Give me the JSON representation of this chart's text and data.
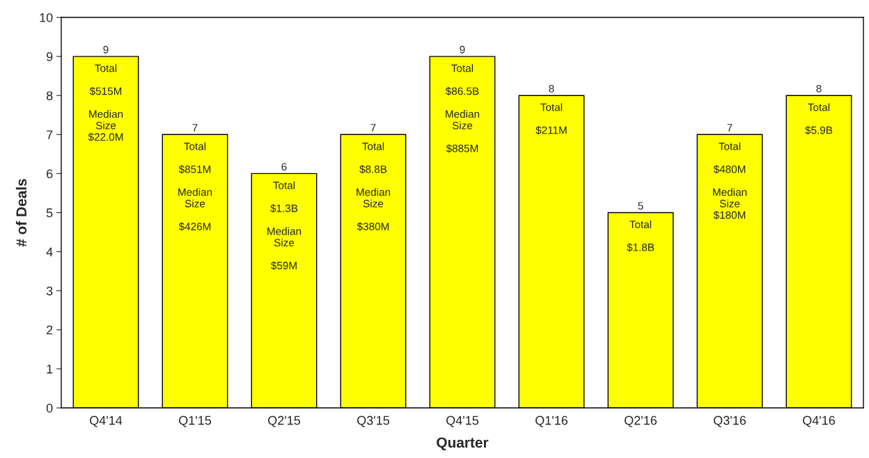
{
  "chart_data": {
    "type": "bar",
    "xlabel": "Quarter",
    "ylabel": "# of Deals",
    "categories": [
      "Q4'14",
      "Q1'15",
      "Q2'15",
      "Q3'15",
      "Q4'15",
      "Q1'16",
      "Q2'16",
      "Q3'16",
      "Q4'16"
    ],
    "values": [
      9,
      7,
      6,
      7,
      9,
      8,
      5,
      7,
      8
    ],
    "color": "#ffff00",
    "ylim": [
      0,
      10
    ],
    "yticks": [
      0,
      1,
      2,
      3,
      4,
      5,
      6,
      7,
      8,
      9,
      10
    ],
    "grid": false,
    "data_labels": true,
    "annotations": [
      "Total\n\n$515M\n\nMedian\nSize\n$22.0M",
      "Total\n\n$851M\n\nMedian\nSize\n\n$426M",
      "Total\n\n$1.3B\n\nMedian\nSize\n\n$59M",
      "Total\n\n$8.8B\n\nMedian\nSize\n\n$380M",
      "Total\n\n$86.5B\n\nMedian\nSize\n\n$885M",
      "Total\n\n$211M",
      "Total\n\n$1.8B",
      "Total\n\n$480M\n\nMedian\nSize\n$180M",
      "Total\n\n$5.9B"
    ]
  }
}
